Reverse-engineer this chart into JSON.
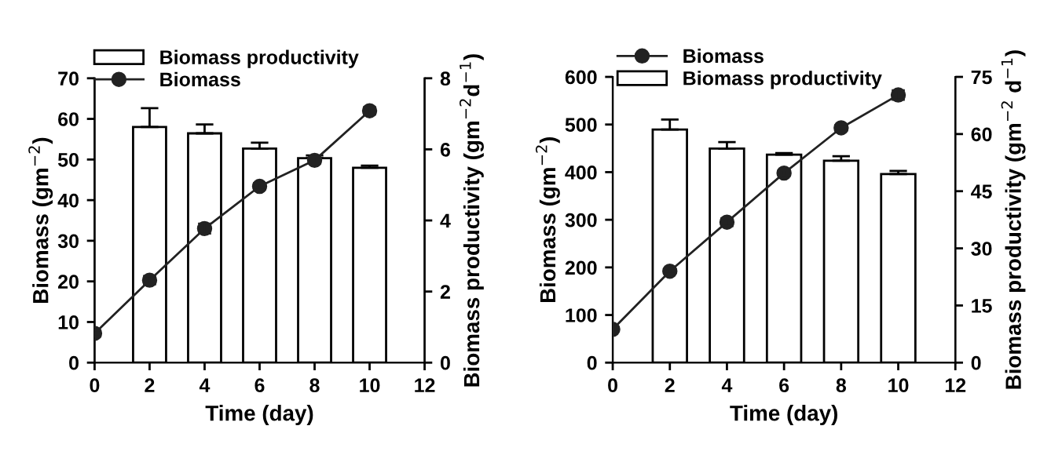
{
  "chart_data": [
    {
      "type": "bar",
      "xlabel": "Time (day)",
      "ylabel": "Biomass (gm$^{−2}$)",
      "y2label": "Biomass productivity (gm$^{−2}$d$^{−1}$)",
      "xlim": [
        0,
        12
      ],
      "xticks": [
        0,
        2,
        4,
        6,
        8,
        10,
        12
      ],
      "ylim": [
        0,
        70
      ],
      "yticks": [
        0,
        10,
        20,
        30,
        40,
        50,
        60,
        70
      ],
      "y2lim": [
        0,
        8
      ],
      "y2ticks": [
        0,
        2,
        4,
        6,
        8
      ],
      "legend": "top",
      "grid": false,
      "series": [
        {
          "name": "Biomass productivity",
          "axis": "y2",
          "color": "#ffffff",
          "x": [
            2,
            4,
            6,
            8,
            10
          ],
          "values": [
            6.63,
            6.45,
            6.02,
            5.75,
            5.48
          ],
          "errors": [
            0.53,
            0.25,
            0.17,
            0.08,
            0.06
          ]
        },
        {
          "name": "Biomass",
          "type": "line",
          "axis": "y",
          "color": "#222222",
          "marker": "circle",
          "x": [
            0,
            2,
            4,
            6,
            8,
            10
          ],
          "values": [
            7.2,
            20.3,
            33.0,
            43.4,
            49.8,
            62.0
          ],
          "errors": [
            0.8,
            1.0,
            1.2,
            0.8,
            0.8,
            0.9
          ]
        }
      ]
    },
    {
      "type": "bar",
      "xlabel": "Time (day)",
      "ylabel": "Biomass (gm$^{−2}$)",
      "y2label": "Biomass productivity (gm$^{−2}$ d$^{−1}$)",
      "xlim": [
        0,
        12
      ],
      "xticks": [
        0,
        2,
        4,
        6,
        8,
        10,
        12
      ],
      "ylim": [
        0,
        600
      ],
      "yticks": [
        0,
        100,
        200,
        300,
        400,
        500,
        600
      ],
      "y2lim": [
        0,
        75
      ],
      "y2ticks": [
        0,
        15,
        30,
        45,
        60,
        75
      ],
      "legend": "top",
      "grid": false,
      "series": [
        {
          "name": "Biomass",
          "type": "line",
          "axis": "y",
          "color": "#222222",
          "marker": "circle",
          "x": [
            0,
            2,
            4,
            6,
            8,
            10
          ],
          "values": [
            70,
            192,
            295,
            398,
            493,
            562
          ],
          "errors": [
            5,
            5,
            8,
            6,
            6,
            10
          ]
        },
        {
          "name": "Biomass productivity",
          "axis": "y2",
          "color": "#ffffff",
          "x": [
            2,
            4,
            6,
            8,
            10
          ],
          "values": [
            61.2,
            56.2,
            54.6,
            53.0,
            49.5
          ],
          "errors": [
            2.6,
            1.7,
            0.4,
            1.2,
            0.8
          ]
        }
      ]
    }
  ]
}
